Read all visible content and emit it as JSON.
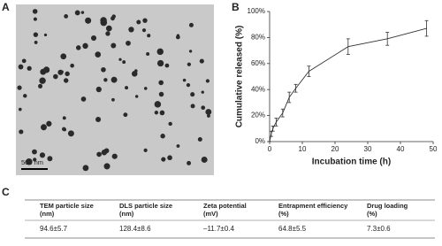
{
  "panel_labels": [
    "A",
    "B",
    "C"
  ],
  "image": {
    "scale_bar": "500 nm"
  },
  "chart_data": {
    "type": "line",
    "x_label": "Incubation time (h)",
    "y_label": "Cumulative released (%)",
    "x": [
      0,
      0.5,
      1,
      2,
      4,
      6,
      8,
      12,
      24,
      36,
      48
    ],
    "series": [
      {
        "color": "#333333",
        "values": [
          0,
          6,
          10,
          15,
          22,
          34,
          41,
          54,
          73,
          79,
          87
        ],
        "errors": [
          0,
          2,
          2,
          3,
          3,
          4,
          3,
          4,
          6,
          5,
          6
        ]
      }
    ],
    "xlim": [
      0,
      50
    ],
    "xticks": [
      0,
      10,
      20,
      30,
      40,
      50
    ],
    "ylim": [
      0,
      100
    ],
    "yticks": [
      {
        "value": 0,
        "label": "0%"
      },
      {
        "value": 20,
        "label": "20%"
      },
      {
        "value": 40,
        "label": "40%"
      },
      {
        "value": 60,
        "label": "60%"
      },
      {
        "value": 80,
        "label": "80%"
      },
      {
        "value": 100,
        "label": "100%"
      }
    ]
  },
  "table": {
    "header": [
      [
        "TEM particle size",
        "(nm)"
      ],
      [
        "DLS particle size",
        "(nm)"
      ],
      [
        "Zeta potential",
        "(mV)"
      ],
      [
        "Entrapment efficiency",
        "(%)"
      ],
      [
        "Drug loading",
        "(%)"
      ]
    ],
    "rows": [
      [
        "94.6±5.7",
        "128.4±8.6",
        "–11.7±0.4",
        "64.8±5.5",
        "7.3±0.6"
      ]
    ]
  }
}
